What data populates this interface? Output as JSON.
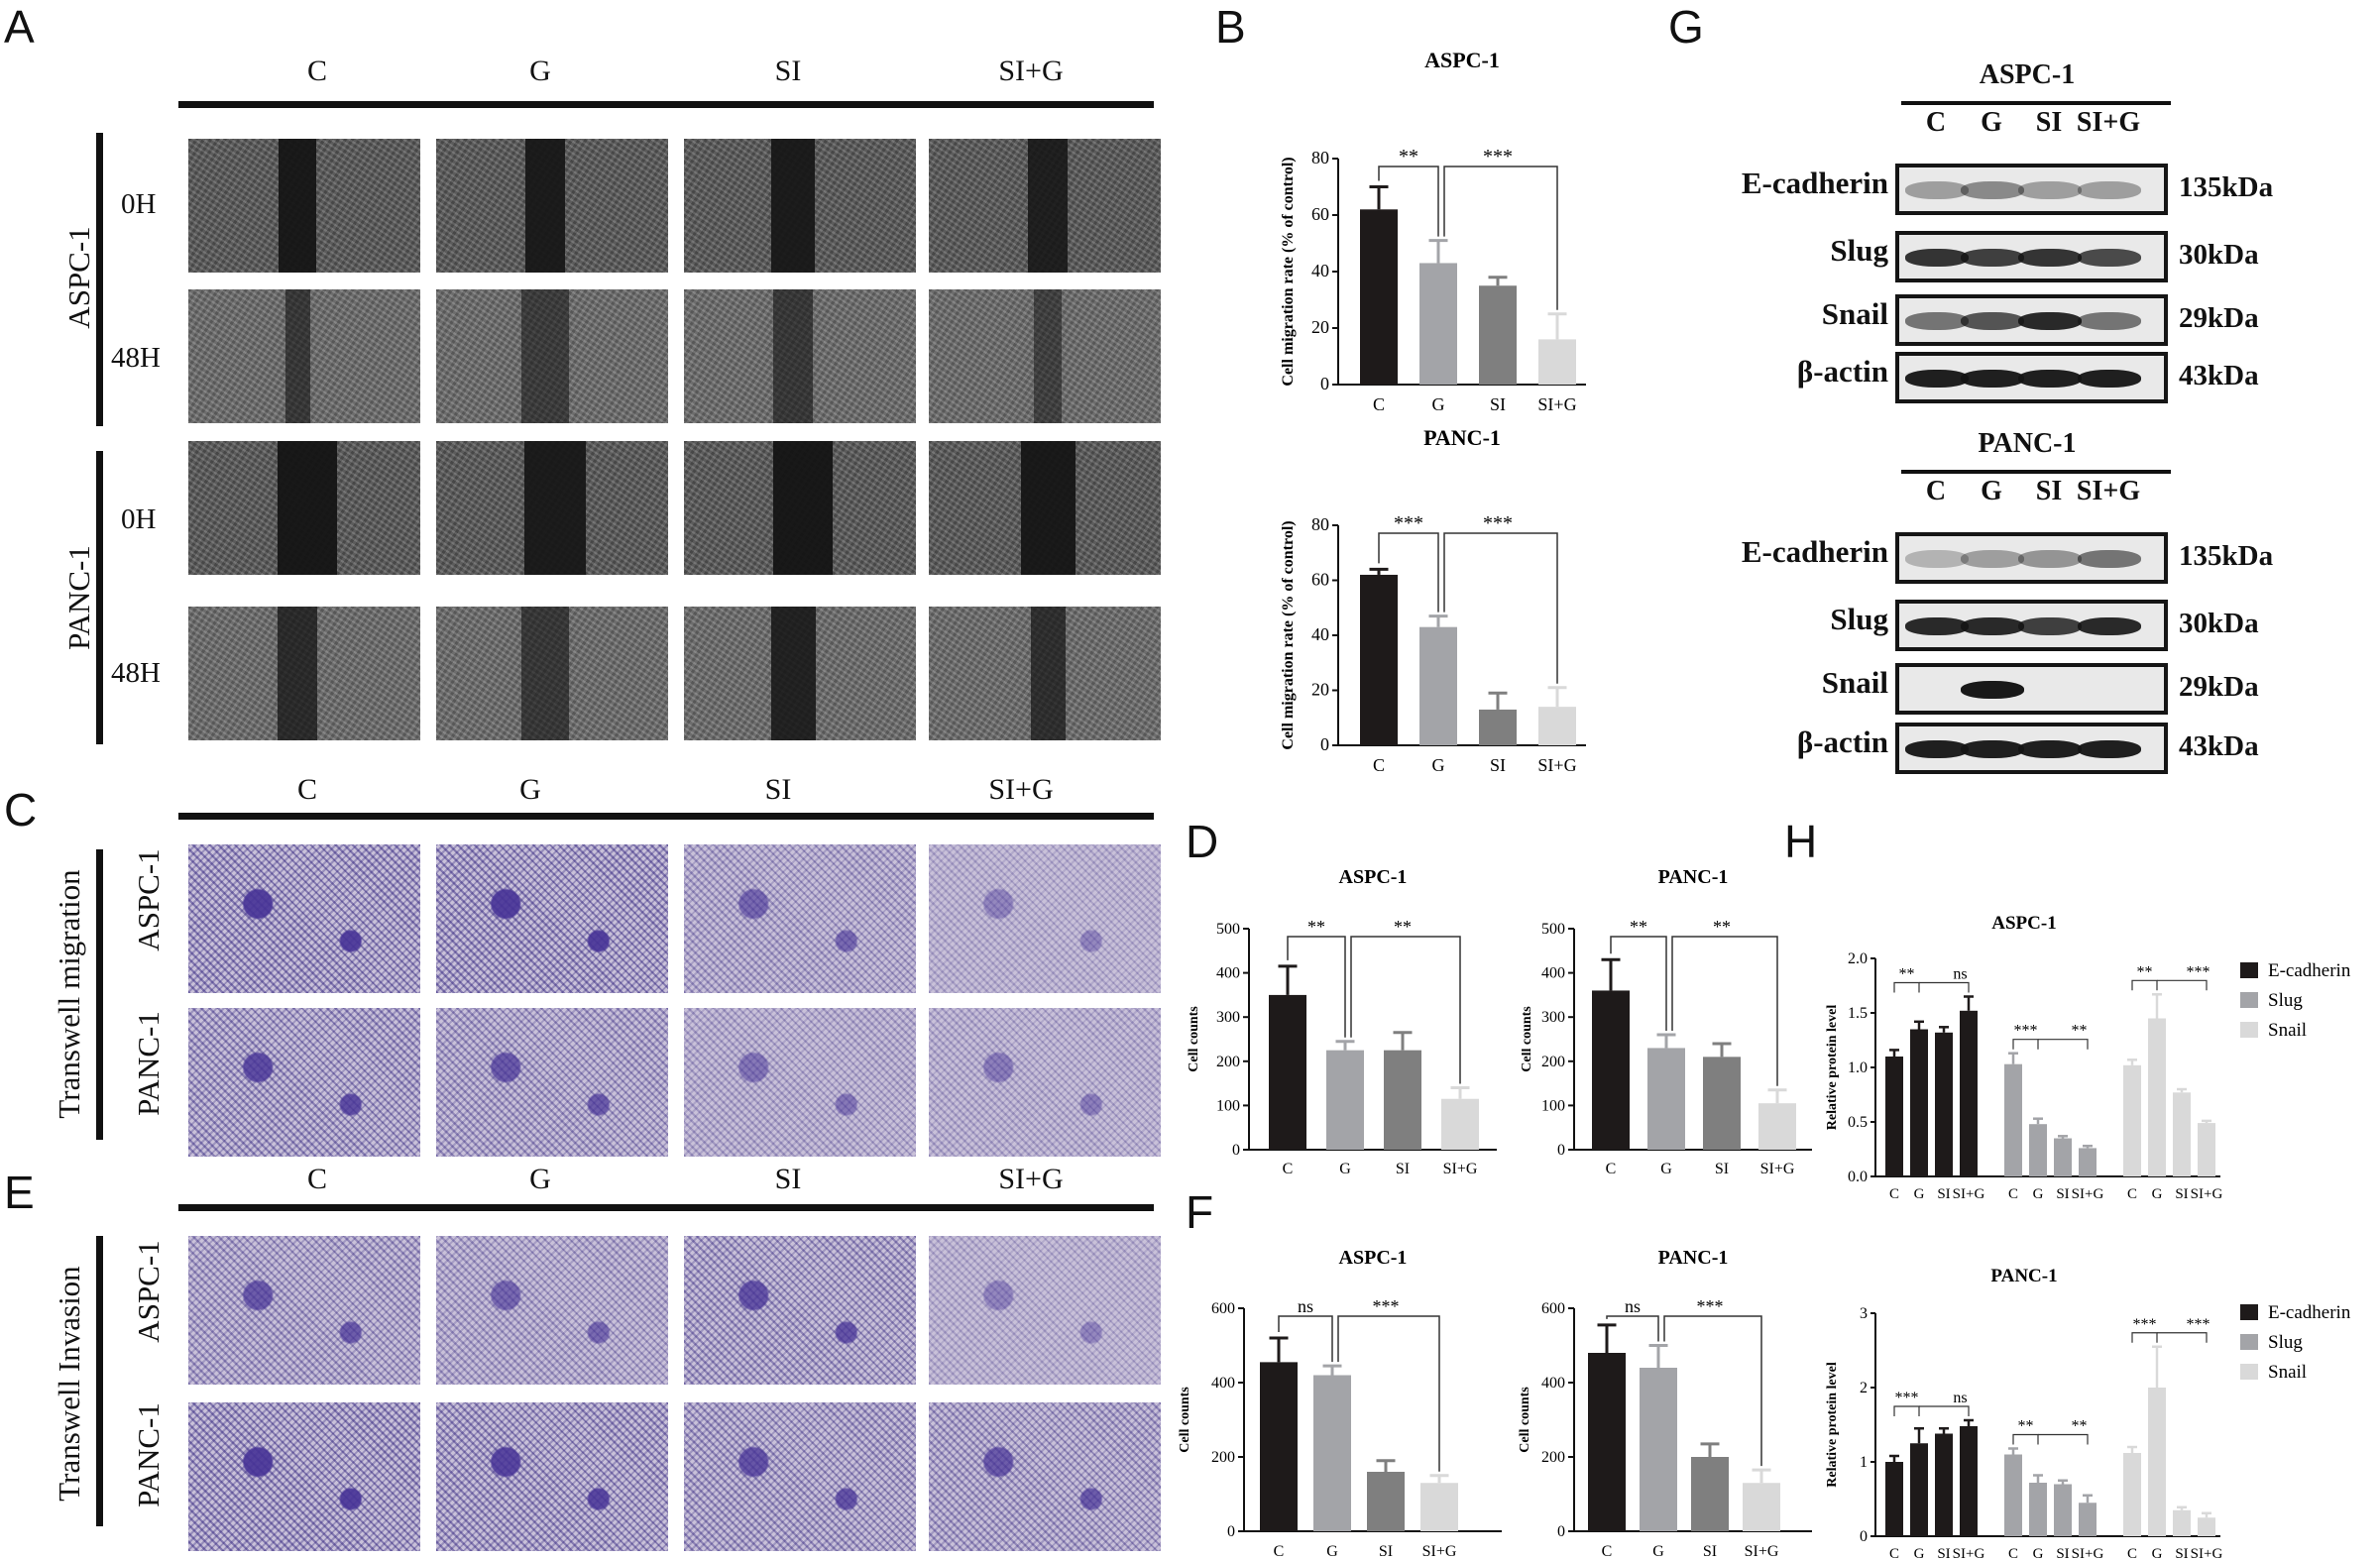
{
  "panels": {
    "A": "A",
    "B": "B",
    "C": "C",
    "D": "D",
    "E": "E",
    "F": "F",
    "G": "G",
    "H": "H"
  },
  "groups": [
    "C",
    "G",
    "SI",
    "SI+G"
  ],
  "panel_a": {
    "rows": [
      {
        "cell": "ASPC-1",
        "time": "0H"
      },
      {
        "cell": "ASPC-1",
        "time": "48H"
      },
      {
        "cell": "PANC-1",
        "time": "0H"
      },
      {
        "cell": "PANC-1",
        "time": "48H"
      }
    ],
    "cell_labels": [
      "ASPC-1",
      "PANC-1"
    ],
    "time_labels": [
      "0H",
      "48H",
      "0H",
      "48H"
    ]
  },
  "panel_c": {
    "side_label": "Transwell migration",
    "row_labels": [
      "ASPC-1",
      "PANC-1"
    ]
  },
  "panel_e": {
    "side_label": "Transwell Invasion",
    "row_labels": [
      "ASPC-1",
      "PANC-1"
    ]
  },
  "western": {
    "blocks": [
      {
        "title": "ASPC-1",
        "proteins": [
          "E-cadherin",
          "Slug",
          "Snail",
          "β-actin"
        ],
        "kda": [
          "135kDa",
          "30kDa",
          "29kDa",
          "43kDa"
        ]
      },
      {
        "title": "PANC-1",
        "proteins": [
          "E-cadherin",
          "Slug",
          "Snail",
          "β-actin"
        ],
        "kda": [
          "135kDa",
          "30kDa",
          "29kDa",
          "43kDa"
        ]
      }
    ]
  },
  "colors": {
    "C": "#1e1a1a",
    "G": "#a3a4a8",
    "SI": "#7f7f7f",
    "SIG": "#d9d9d9",
    "purple": "#5a4aa0"
  },
  "chart_data": [
    {
      "id": "B-ASPC-1",
      "type": "bar",
      "title": "ASPC-1",
      "ylabel": "Cell migration rate (% of control)",
      "ylim": [
        0,
        80
      ],
      "yticks": [
        0,
        20,
        40,
        60,
        80
      ],
      "categories": [
        "C",
        "G",
        "SI",
        "SI+G"
      ],
      "values": [
        62,
        43,
        35,
        16
      ],
      "errors": [
        8,
        8,
        3,
        9
      ],
      "annotations": [
        "**",
        "***"
      ]
    },
    {
      "id": "B-PANC-1",
      "type": "bar",
      "title": "PANC-1",
      "ylabel": "Cell migration rate (% of control)",
      "ylim": [
        0,
        80
      ],
      "yticks": [
        0,
        20,
        40,
        60,
        80
      ],
      "categories": [
        "C",
        "G",
        "SI",
        "SI+G"
      ],
      "values": [
        62,
        43,
        13,
        14
      ],
      "errors": [
        2,
        4,
        6,
        7
      ],
      "annotations": [
        "***",
        "***"
      ]
    },
    {
      "id": "D-ASPC-1",
      "type": "bar",
      "title": "ASPC-1",
      "ylabel": "Cell counts",
      "ylim": [
        0,
        500
      ],
      "yticks": [
        0,
        100,
        200,
        300,
        400,
        500
      ],
      "categories": [
        "C",
        "G",
        "SI",
        "SI+G"
      ],
      "values": [
        350,
        225,
        225,
        115
      ],
      "errors": [
        65,
        20,
        40,
        25
      ],
      "annotations": [
        "**",
        "**"
      ]
    },
    {
      "id": "D-PANC-1",
      "type": "bar",
      "title": "PANC-1",
      "ylabel": "Cell counts",
      "ylim": [
        0,
        500
      ],
      "yticks": [
        0,
        100,
        200,
        300,
        400,
        500
      ],
      "categories": [
        "C",
        "G",
        "SI",
        "SI+G"
      ],
      "values": [
        360,
        230,
        210,
        105
      ],
      "errors": [
        70,
        30,
        30,
        30
      ],
      "annotations": [
        "**",
        "**"
      ]
    },
    {
      "id": "F-ASPC-1",
      "type": "bar",
      "title": "ASPC-1",
      "ylabel": "Cell counts",
      "ylim": [
        0,
        600
      ],
      "yticks": [
        0,
        200,
        400,
        600
      ],
      "categories": [
        "C",
        "G",
        "SI",
        "SI+G"
      ],
      "values": [
        455,
        420,
        160,
        130
      ],
      "errors": [
        65,
        25,
        30,
        20
      ],
      "annotations": [
        "ns",
        "***"
      ]
    },
    {
      "id": "F-PANC-1",
      "type": "bar",
      "title": "PANC-1",
      "ylabel": "Cell counts",
      "ylim": [
        0,
        600
      ],
      "yticks": [
        0,
        200,
        400,
        600
      ],
      "categories": [
        "C",
        "G",
        "SI",
        "SI+G"
      ],
      "values": [
        480,
        440,
        200,
        130
      ],
      "errors": [
        75,
        60,
        35,
        35
      ],
      "annotations": [
        "ns",
        "***"
      ]
    },
    {
      "id": "H-ASPC-1",
      "type": "bar",
      "title": "ASPC-1",
      "ylabel": "Relative protein level",
      "ylim": [
        0,
        2.0
      ],
      "yticks": [
        0.0,
        0.5,
        1.0,
        1.5,
        2.0
      ],
      "categories": [
        "C",
        "G",
        "SI",
        "SI+G"
      ],
      "series": [
        {
          "name": "E-cadherin",
          "values": [
            1.1,
            1.35,
            1.32,
            1.52
          ],
          "errors": [
            0.06,
            0.07,
            0.05,
            0.13
          ]
        },
        {
          "name": "Slug",
          "values": [
            1.03,
            0.48,
            0.35,
            0.26
          ],
          "errors": [
            0.1,
            0.05,
            0.02,
            0.02
          ]
        },
        {
          "name": "Snail",
          "values": [
            1.02,
            1.45,
            0.77,
            0.49
          ],
          "errors": [
            0.05,
            0.22,
            0.03,
            0.02
          ]
        }
      ],
      "annotations": [
        [
          "**",
          "ns"
        ],
        [
          "***",
          "**"
        ],
        [
          "**",
          "***"
        ]
      ]
    },
    {
      "id": "H-PANC-1",
      "type": "bar",
      "title": "PANC-1",
      "ylabel": "Relative protein level",
      "ylim": [
        0,
        3
      ],
      "yticks": [
        0,
        1,
        2,
        3
      ],
      "categories": [
        "C",
        "G",
        "SI",
        "SI+G"
      ],
      "series": [
        {
          "name": "E-cadherin",
          "values": [
            1.0,
            1.25,
            1.38,
            1.48
          ],
          "errors": [
            0.08,
            0.2,
            0.07,
            0.08
          ]
        },
        {
          "name": "Slug",
          "values": [
            1.1,
            0.72,
            0.7,
            0.45
          ],
          "errors": [
            0.08,
            0.1,
            0.05,
            0.1
          ]
        },
        {
          "name": "Snail",
          "values": [
            1.12,
            2.0,
            0.35,
            0.25
          ],
          "errors": [
            0.08,
            0.55,
            0.04,
            0.06
          ]
        }
      ],
      "annotations": [
        [
          "***",
          "ns"
        ],
        [
          "**",
          "**"
        ],
        [
          "***",
          "***"
        ]
      ]
    }
  ]
}
